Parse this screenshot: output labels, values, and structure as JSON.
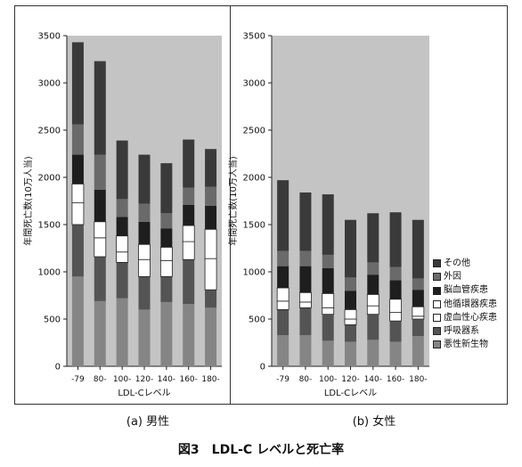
{
  "figure_title": "図3　LDL-C レベルと死亡率",
  "colors": {
    "plot_background": "#c4c4c4",
    "その他": "#3a3a3a",
    "外因": "#6a6a6a",
    "脳血管疾患": "#1e1e1e",
    "他循環器疾患": "#ffffff",
    "虚血性心疾患": "#ffffff",
    "呼吸器系": "#545454",
    "悪性新生物": "#858585"
  },
  "legend": [
    "その他",
    "外因",
    "脳血管疾患",
    "他循環器疾患",
    "虚血性心疾患",
    "呼吸器系",
    "悪性新生物"
  ],
  "chart_data": [
    {
      "type": "bar",
      "stacked": true,
      "caption": "(a) 男性",
      "xlabel": "LDL-Cレベル",
      "ylabel": "年間死亡数(10万人当)",
      "ylim": [
        0,
        3500
      ],
      "yticks": [
        0,
        500,
        1000,
        1500,
        2000,
        2500,
        3000,
        3500
      ],
      "categories": [
        "-79",
        "80-",
        "100-",
        "120-",
        "140-",
        "160-",
        "180-"
      ],
      "series": [
        {
          "name": "悪性新生物",
          "values": [
            950,
            690,
            720,
            600,
            680,
            660,
            620
          ]
        },
        {
          "name": "呼吸器系",
          "values": [
            550,
            470,
            380,
            350,
            270,
            470,
            190
          ]
        },
        {
          "name": "虚血性心疾患",
          "values": [
            230,
            200,
            110,
            180,
            170,
            190,
            330
          ]
        },
        {
          "name": "他循環器疾患",
          "values": [
            200,
            170,
            170,
            160,
            140,
            170,
            310
          ]
        },
        {
          "name": "脳血管疾患",
          "values": [
            310,
            340,
            200,
            240,
            200,
            220,
            250
          ]
        },
        {
          "name": "外因",
          "values": [
            320,
            370,
            190,
            190,
            160,
            180,
            200
          ]
        },
        {
          "name": "その他",
          "values": [
            870,
            990,
            620,
            520,
            530,
            510,
            400
          ]
        }
      ]
    },
    {
      "type": "bar",
      "stacked": true,
      "caption": "(b) 女性",
      "xlabel": "LDL-Cレベル",
      "ylabel": "年間死亡数(10万人当)",
      "ylim": [
        0,
        3500
      ],
      "yticks": [
        0,
        500,
        1000,
        1500,
        2000,
        2500,
        3000,
        3500
      ],
      "categories": [
        "-79",
        "80-",
        "100-",
        "120-",
        "140-",
        "160-",
        "180-"
      ],
      "series": [
        {
          "name": "悪性新生物",
          "values": [
            330,
            330,
            270,
            260,
            280,
            260,
            320
          ]
        },
        {
          "name": "呼吸器系",
          "values": [
            270,
            290,
            280,
            180,
            270,
            220,
            180
          ]
        },
        {
          "name": "虚血性心疾患",
          "values": [
            90,
            60,
            70,
            60,
            90,
            90,
            30
          ]
        },
        {
          "name": "他循環器疾患",
          "values": [
            140,
            100,
            150,
            100,
            120,
            140,
            100
          ]
        },
        {
          "name": "脳血管疾患",
          "values": [
            230,
            280,
            270,
            200,
            210,
            200,
            180
          ]
        },
        {
          "name": "外因",
          "values": [
            160,
            160,
            140,
            140,
            130,
            140,
            120
          ]
        },
        {
          "name": "その他",
          "values": [
            750,
            620,
            640,
            610,
            520,
            580,
            620
          ]
        }
      ]
    }
  ]
}
